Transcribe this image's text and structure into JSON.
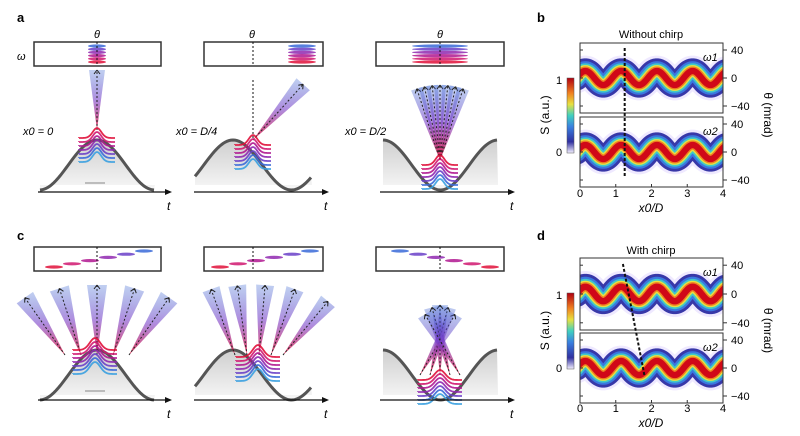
{
  "panels": {
    "a": {
      "label": "a",
      "theta": "θ",
      "omega": "ω",
      "x0_labels": [
        "x0 = 0",
        "x0 = D/4",
        "x0 = D/2"
      ],
      "velocity": "v",
      "time": "t"
    },
    "c": {
      "label": "c",
      "velocity": "v",
      "time": "t"
    },
    "b": {
      "label": "b",
      "title": "Without chirp",
      "sub_labels": [
        "ω1",
        "ω2"
      ]
    },
    "d": {
      "label": "d",
      "title": "With chirp",
      "sub_labels": [
        "ω1",
        "ω2"
      ]
    }
  },
  "axes": {
    "xlabel": "x0/D",
    "x_ticks": [
      "0",
      "1",
      "2",
      "3",
      "4"
    ],
    "y_right_label": "θ (mrad)",
    "y_right_ticks": [
      "40",
      "0",
      "−40"
    ],
    "colorbar_label": "S (a.u.)",
    "colorbar_ticks": [
      "1",
      "0"
    ]
  },
  "colors": {
    "red": "#e0103a",
    "magenta": "#b01890",
    "purple": "#7a30c0",
    "blue": "#2a6ad0",
    "curve": "#555555"
  }
}
